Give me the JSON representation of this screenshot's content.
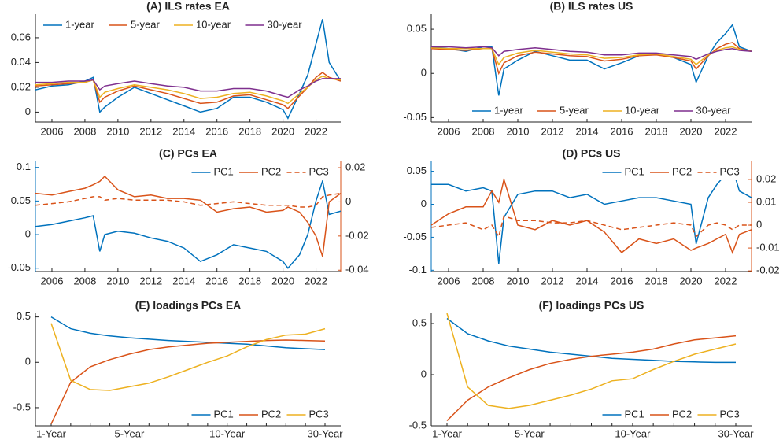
{
  "chart_data": [
    {
      "type": "line",
      "title": "(A) ILS rates EA",
      "x": [
        2005,
        2006,
        2007,
        2008,
        2008.5,
        2008.9,
        2009.2,
        2010,
        2011,
        2012,
        2013,
        2014,
        2015,
        2016,
        2017,
        2018,
        2019,
        2020,
        2020.3,
        2021,
        2021.5,
        2022,
        2022.4,
        2022.8,
        2023.5
      ],
      "xlim": [
        2005,
        2023.5
      ],
      "xticks": [
        2006,
        2008,
        2010,
        2012,
        2014,
        2016,
        2018,
        2020,
        2022
      ],
      "ylim": [
        -0.008,
        0.079
      ],
      "yticks": [
        0,
        0.02,
        0.04,
        0.06
      ],
      "legend": "upper-left",
      "series": [
        {
          "name": "1-year",
          "color": "#0072BD",
          "values": [
            0.018,
            0.021,
            0.022,
            0.025,
            0.028,
            0.0,
            0.004,
            0.012,
            0.02,
            0.015,
            0.01,
            0.005,
            0.0,
            0.003,
            0.012,
            0.012,
            0.008,
            0.002,
            -0.005,
            0.015,
            0.03,
            0.055,
            0.075,
            0.04,
            0.025
          ]
        },
        {
          "name": "5-year",
          "color": "#D95319",
          "values": [
            0.021,
            0.022,
            0.023,
            0.024,
            0.026,
            0.008,
            0.012,
            0.017,
            0.021,
            0.018,
            0.015,
            0.011,
            0.007,
            0.008,
            0.013,
            0.014,
            0.01,
            0.006,
            0.003,
            0.013,
            0.02,
            0.028,
            0.032,
            0.028,
            0.025
          ]
        },
        {
          "name": "10-year",
          "color": "#EDB120",
          "values": [
            0.022,
            0.023,
            0.024,
            0.024,
            0.026,
            0.012,
            0.016,
            0.019,
            0.022,
            0.02,
            0.018,
            0.015,
            0.011,
            0.012,
            0.015,
            0.016,
            0.013,
            0.009,
            0.007,
            0.015,
            0.02,
            0.026,
            0.029,
            0.027,
            0.026
          ]
        },
        {
          "name": "30-year",
          "color": "#7E2F8E",
          "values": [
            0.024,
            0.024,
            0.025,
            0.025,
            0.026,
            0.018,
            0.021,
            0.023,
            0.025,
            0.023,
            0.021,
            0.02,
            0.017,
            0.017,
            0.019,
            0.019,
            0.017,
            0.013,
            0.012,
            0.018,
            0.021,
            0.025,
            0.027,
            0.027,
            0.027
          ]
        }
      ]
    },
    {
      "type": "line",
      "title": "(B) ILS rates US",
      "x": [
        2005,
        2006,
        2007,
        2008,
        2008.5,
        2008.9,
        2009.2,
        2010,
        2011,
        2012,
        2013,
        2014,
        2015,
        2016,
        2017,
        2018,
        2019,
        2020,
        2020.3,
        2021,
        2021.5,
        2022,
        2022.4,
        2022.8,
        2023.5
      ],
      "xlim": [
        2005,
        2023.5
      ],
      "xticks": [
        2006,
        2008,
        2010,
        2012,
        2014,
        2016,
        2018,
        2020,
        2022
      ],
      "ylim": [
        -0.055,
        0.067
      ],
      "yticks": [
        -0.05,
        0,
        0.05
      ],
      "legend": "lower-right",
      "series": [
        {
          "name": "1-year",
          "color": "#0072BD",
          "values": [
            0.03,
            0.028,
            0.025,
            0.03,
            0.03,
            -0.025,
            0.005,
            0.015,
            0.025,
            0.02,
            0.015,
            0.015,
            0.005,
            0.012,
            0.02,
            0.022,
            0.018,
            0.01,
            -0.01,
            0.02,
            0.035,
            0.045,
            0.055,
            0.03,
            0.025
          ]
        },
        {
          "name": "5-year",
          "color": "#D95319",
          "values": [
            0.028,
            0.027,
            0.026,
            0.028,
            0.028,
            0.0,
            0.012,
            0.02,
            0.024,
            0.022,
            0.02,
            0.019,
            0.014,
            0.016,
            0.02,
            0.021,
            0.018,
            0.014,
            0.005,
            0.02,
            0.028,
            0.033,
            0.035,
            0.028,
            0.025
          ]
        },
        {
          "name": "10-year",
          "color": "#EDB120",
          "values": [
            0.029,
            0.028,
            0.028,
            0.028,
            0.028,
            0.01,
            0.018,
            0.023,
            0.026,
            0.024,
            0.022,
            0.021,
            0.017,
            0.018,
            0.021,
            0.022,
            0.019,
            0.016,
            0.01,
            0.021,
            0.026,
            0.029,
            0.03,
            0.027,
            0.025
          ]
        },
        {
          "name": "30-year",
          "color": "#7E2F8E",
          "values": [
            0.03,
            0.03,
            0.029,
            0.03,
            0.029,
            0.02,
            0.025,
            0.027,
            0.029,
            0.027,
            0.025,
            0.024,
            0.021,
            0.021,
            0.023,
            0.023,
            0.021,
            0.019,
            0.016,
            0.022,
            0.025,
            0.027,
            0.028,
            0.026,
            0.025
          ]
        }
      ]
    },
    {
      "type": "line",
      "title": "(C) PCs EA",
      "x": [
        2005,
        2006,
        2007,
        2008,
        2008.5,
        2008.9,
        2009.2,
        2010,
        2011,
        2012,
        2013,
        2014,
        2015,
        2016,
        2017,
        2018,
        2019,
        2020,
        2020.3,
        2021,
        2021.5,
        2022,
        2022.4,
        2022.8,
        2023.5
      ],
      "xlim": [
        2005,
        2023.5
      ],
      "xticks": [
        2006,
        2008,
        2010,
        2012,
        2014,
        2016,
        2018,
        2020,
        2022
      ],
      "ylim": [
        -0.055,
        0.109
      ],
      "yticks": [
        -0.05,
        0,
        0.05,
        0.1
      ],
      "ytick_color": "#0072BD",
      "y2lim": [
        -0.0408,
        0.0237
      ],
      "y2ticks": [
        -0.04,
        -0.02,
        0,
        0.02
      ],
      "y2tick_color": "#D95319",
      "legend": "upper-right",
      "series": [
        {
          "name": "PC1",
          "color": "#0072BD",
          "values": [
            0.012,
            0.015,
            0.02,
            0.025,
            0.028,
            -0.025,
            0.0,
            0.005,
            0.002,
            -0.005,
            -0.01,
            -0.02,
            -0.04,
            -0.03,
            -0.015,
            -0.02,
            -0.025,
            -0.04,
            -0.05,
            -0.03,
            0.0,
            0.05,
            0.08,
            0.03,
            0.035
          ]
        },
        {
          "name": "PC2",
          "color": "#D95319",
          "axis": "y2",
          "values": [
            0.005,
            0.004,
            0.006,
            0.008,
            0.01,
            0.012,
            0.015,
            0.007,
            0.003,
            0.004,
            0.002,
            0.002,
            0.001,
            -0.006,
            -0.004,
            -0.003,
            -0.006,
            -0.005,
            -0.003,
            -0.006,
            -0.012,
            -0.02,
            -0.032,
            0.0,
            0.005
          ]
        },
        {
          "name": "PC3",
          "color": "#D95319",
          "axis": "y2",
          "linestyle": "dashed",
          "values": [
            -0.002,
            -0.001,
            0.0,
            0.002,
            0.003,
            0.003,
            0.001,
            0.002,
            0.001,
            0.001,
            0.001,
            0.0,
            -0.002,
            -0.001,
            0.0,
            -0.001,
            -0.002,
            -0.002,
            -0.002,
            -0.003,
            -0.003,
            -0.002,
            0.003,
            0.004,
            0.005
          ]
        }
      ]
    },
    {
      "type": "line",
      "title": "(D) PCs US",
      "x": [
        2005,
        2006,
        2007,
        2008,
        2008.5,
        2008.9,
        2009.2,
        2010,
        2011,
        2012,
        2013,
        2014,
        2015,
        2016,
        2017,
        2018,
        2019,
        2020,
        2020.3,
        2021,
        2021.5,
        2022,
        2022.4,
        2022.8,
        2023.5
      ],
      "xlim": [
        2005,
        2023.5
      ],
      "xticks": [
        2006,
        2008,
        2010,
        2012,
        2014,
        2016,
        2018,
        2020,
        2022
      ],
      "ylim": [
        -0.102,
        0.065
      ],
      "yticks": [
        -0.1,
        -0.05,
        0,
        0.05
      ],
      "ytick_color": "#0072BD",
      "y2lim": [
        -0.0203,
        0.0279
      ],
      "y2ticks": [
        -0.02,
        -0.01,
        0,
        0.01,
        0.02
      ],
      "y2tick_color": "#D95319",
      "legend": "upper-right",
      "series": [
        {
          "name": "PC1",
          "color": "#0072BD",
          "values": [
            0.03,
            0.03,
            0.02,
            0.025,
            0.02,
            -0.09,
            -0.02,
            0.015,
            0.02,
            0.02,
            0.01,
            0.015,
            0.0,
            0.005,
            0.01,
            0.01,
            0.005,
            0.0,
            -0.06,
            0.01,
            0.03,
            0.045,
            0.055,
            0.02,
            0.01
          ]
        },
        {
          "name": "PC2",
          "color": "#D95319",
          "axis": "y2",
          "values": [
            0.0,
            0.005,
            0.008,
            0.008,
            0.015,
            0.01,
            0.02,
            0.0,
            -0.002,
            0.002,
            0.0,
            0.002,
            -0.003,
            -0.012,
            -0.006,
            -0.008,
            -0.006,
            -0.011,
            -0.01,
            -0.008,
            -0.006,
            -0.004,
            -0.012,
            -0.004,
            -0.002
          ]
        },
        {
          "name": "PC3",
          "color": "#D95319",
          "axis": "y2",
          "linestyle": "dashed",
          "values": [
            -0.001,
            0.0,
            0.001,
            -0.002,
            0.0,
            -0.005,
            0.004,
            0.002,
            0.002,
            0.001,
            0.001,
            0.002,
            0.0,
            -0.002,
            -0.001,
            0.0,
            0.001,
            0.0,
            -0.005,
            0.0,
            0.001,
            0.0,
            -0.002,
            0.0,
            0.0
          ]
        }
      ]
    },
    {
      "type": "line",
      "title": "(E) loadings PCs EA",
      "categories": [
        "1-Year",
        null,
        null,
        null,
        "5-Year",
        null,
        null,
        null,
        null,
        "10-Year",
        null,
        null,
        null,
        null,
        "30-Year"
      ],
      "ylim": [
        -0.7,
        0.54
      ],
      "yticks": [
        -0.5,
        0,
        0.5
      ],
      "legend": "lower-right",
      "series": [
        {
          "name": "PC1",
          "color": "#0072BD",
          "values": [
            0.5,
            0.37,
            0.32,
            0.29,
            0.27,
            0.255,
            0.24,
            0.23,
            0.22,
            0.21,
            0.2,
            0.18,
            0.16,
            0.15,
            0.14
          ]
        },
        {
          "name": "PC2",
          "color": "#D95319",
          "values": [
            -0.68,
            -0.22,
            -0.05,
            0.03,
            0.09,
            0.14,
            0.17,
            0.19,
            0.21,
            0.22,
            0.23,
            0.24,
            0.245,
            0.24,
            0.235
          ]
        },
        {
          "name": "PC3",
          "color": "#EDB120",
          "values": [
            0.43,
            -0.2,
            -0.3,
            -0.31,
            -0.27,
            -0.23,
            -0.16,
            -0.08,
            0.0,
            0.07,
            0.17,
            0.25,
            0.3,
            0.31,
            0.37
          ]
        }
      ]
    },
    {
      "type": "line",
      "title": "(F) loadings PCs US",
      "categories": [
        "1-Year",
        null,
        null,
        null,
        "5-Year",
        null,
        null,
        null,
        null,
        "10-Year",
        null,
        null,
        null,
        null,
        "30-Year"
      ],
      "ylim": [
        -0.5,
        0.6
      ],
      "yticks": [
        -0.5,
        0,
        0.5
      ],
      "legend": "lower-right",
      "series": [
        {
          "name": "PC1",
          "color": "#0072BD",
          "values": [
            0.55,
            0.4,
            0.33,
            0.28,
            0.25,
            0.22,
            0.2,
            0.18,
            0.16,
            0.15,
            0.14,
            0.13,
            0.125,
            0.12,
            0.12
          ]
        },
        {
          "name": "PC2",
          "color": "#D95319",
          "values": [
            -0.45,
            -0.25,
            -0.12,
            -0.03,
            0.05,
            0.11,
            0.15,
            0.18,
            0.2,
            0.22,
            0.25,
            0.3,
            0.34,
            0.36,
            0.38
          ]
        },
        {
          "name": "PC3",
          "color": "#EDB120",
          "values": [
            0.6,
            -0.12,
            -0.3,
            -0.33,
            -0.3,
            -0.25,
            -0.2,
            -0.14,
            -0.06,
            -0.04,
            0.05,
            0.13,
            0.2,
            0.25,
            0.3
          ]
        }
      ]
    }
  ]
}
